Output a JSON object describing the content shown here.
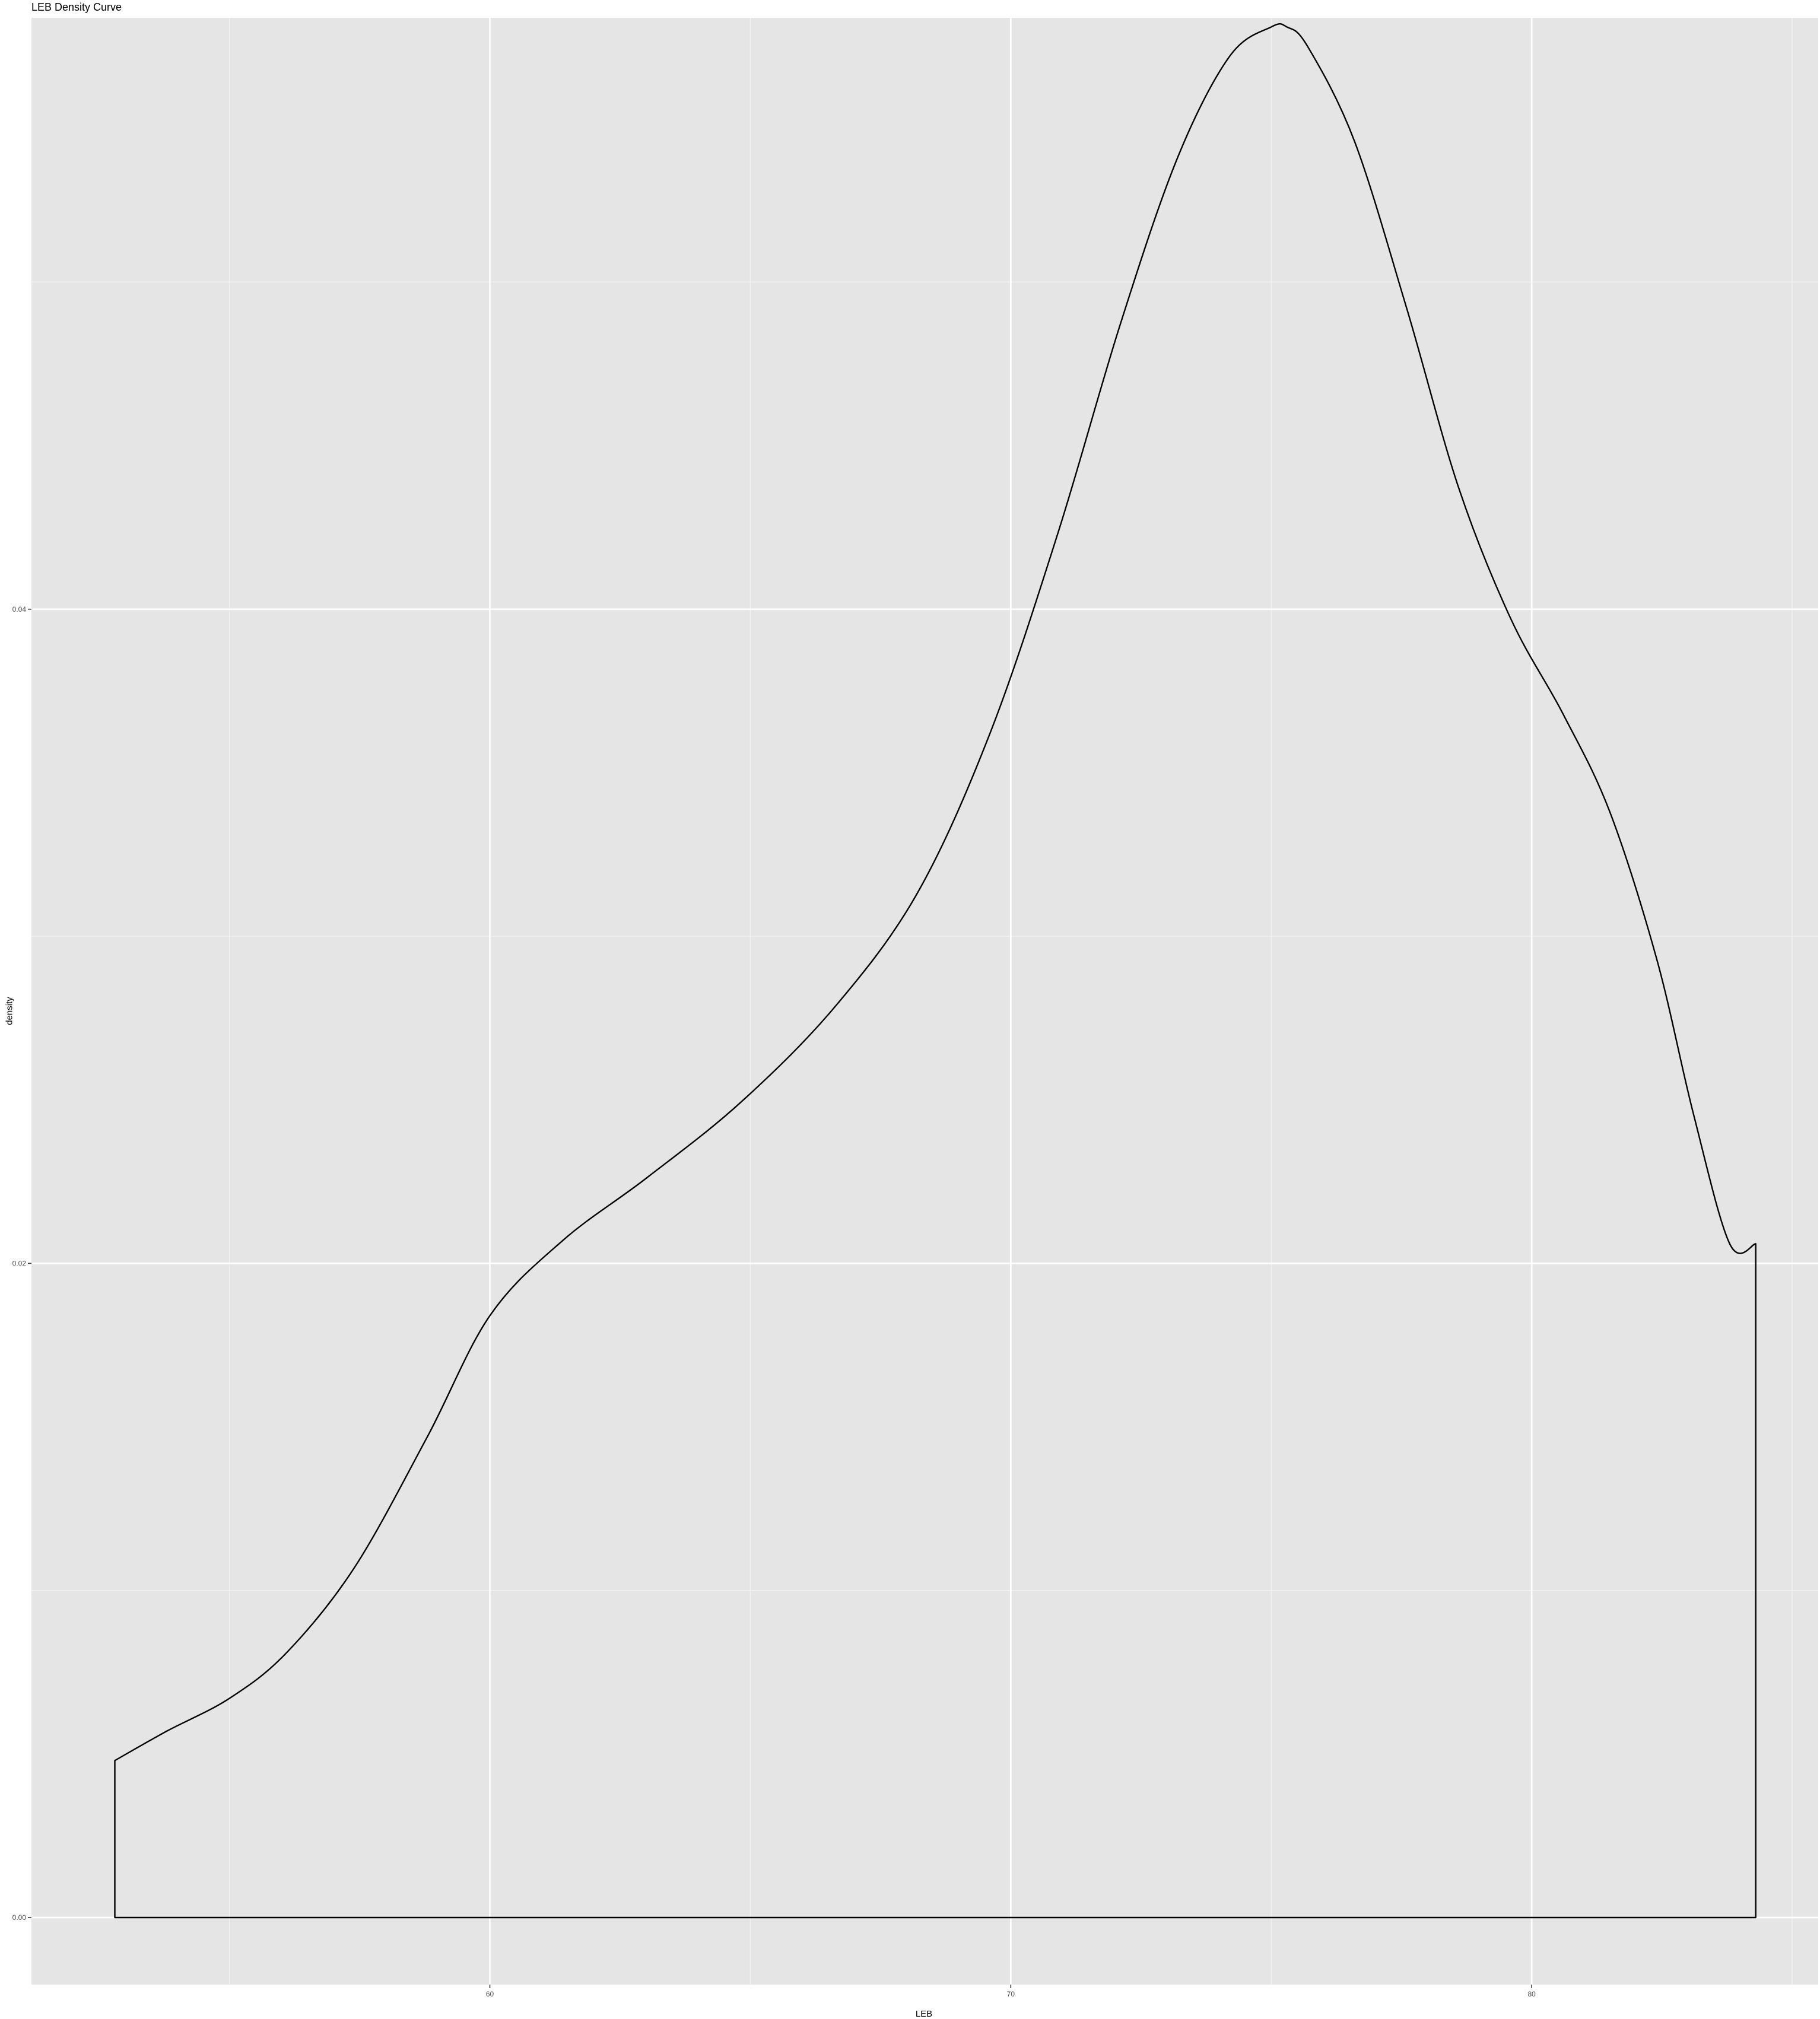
{
  "colors": {
    "panel_background": "#E5E5E5",
    "grid_major": "#FFFFFF",
    "grid_minor": "#F2F2F2",
    "curve": "#000000",
    "tick_label": "#4D4D4D"
  },
  "chart_data": {
    "type": "area",
    "title": "LEB Density Curve",
    "xlabel": "LEB",
    "ylabel": "density",
    "xlim": [
      51.2,
      85.5
    ],
    "ylim": [
      -0.00205,
      0.05808
    ],
    "x_ticks": [
      60,
      70,
      80
    ],
    "x_tick_labels": [
      "60",
      "70",
      "80"
    ],
    "y_ticks": [
      0.0,
      0.02,
      0.04
    ],
    "y_tick_labels": [
      "0.00",
      "0.02",
      "0.04"
    ],
    "grid": true,
    "legend": "none",
    "series": [
      {
        "x": [
          52.8,
          53.8,
          55.0,
          56.1,
          57.4,
          58.8,
          60.0,
          61.4,
          63.0,
          64.8,
          66.6,
          68.2,
          69.6,
          70.9,
          72.1,
          73.2,
          74.2,
          75.0,
          75.3,
          75.7,
          76.6,
          77.6,
          78.6,
          79.6,
          80.6,
          81.5,
          82.4,
          83.1,
          83.8,
          84.3
        ],
        "y": [
          0.0048,
          0.0057,
          0.0067,
          0.0081,
          0.0107,
          0.0147,
          0.0184,
          0.0207,
          0.0226,
          0.0249,
          0.0278,
          0.0313,
          0.0362,
          0.0423,
          0.0487,
          0.0538,
          0.0569,
          0.0578,
          0.0578,
          0.0572,
          0.0543,
          0.0492,
          0.0437,
          0.0397,
          0.0368,
          0.0338,
          0.0293,
          0.0246,
          0.0206,
          0.0206
        ]
      }
    ]
  }
}
